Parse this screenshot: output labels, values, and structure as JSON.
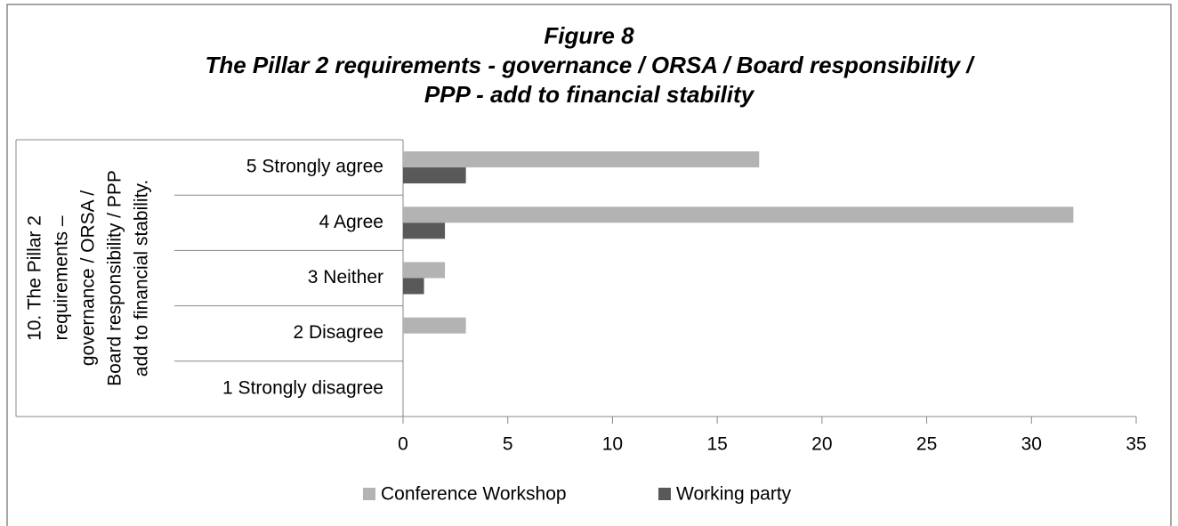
{
  "chart_data": {
    "type": "bar",
    "orientation": "horizontal",
    "title": [
      "Figure 8",
      "The Pillar  2 requirements - governance / ORSA / Board responsibility /",
      "PPP - add to financial stability"
    ],
    "y_group_label": [
      "10. The Pillar 2",
      "requirements –",
      "governance / ORSA /",
      "Board responsibility / PPP",
      "add to financial stability."
    ],
    "categories": [
      "5 Strongly agree",
      "4 Agree",
      "3 Neither",
      "2 Disagree",
      "1 Strongly disagree"
    ],
    "series": [
      {
        "name": "Conference Workshop",
        "color": "#b3b3b3",
        "values": [
          17,
          32,
          2,
          3,
          0
        ]
      },
      {
        "name": "Working party",
        "color": "#595959",
        "values": [
          3,
          2,
          1,
          0,
          0
        ]
      }
    ],
    "xlim": [
      0,
      35
    ],
    "xticks": [
      0,
      5,
      10,
      15,
      20,
      25,
      30,
      35
    ],
    "grid": false,
    "legend": "bottom"
  }
}
